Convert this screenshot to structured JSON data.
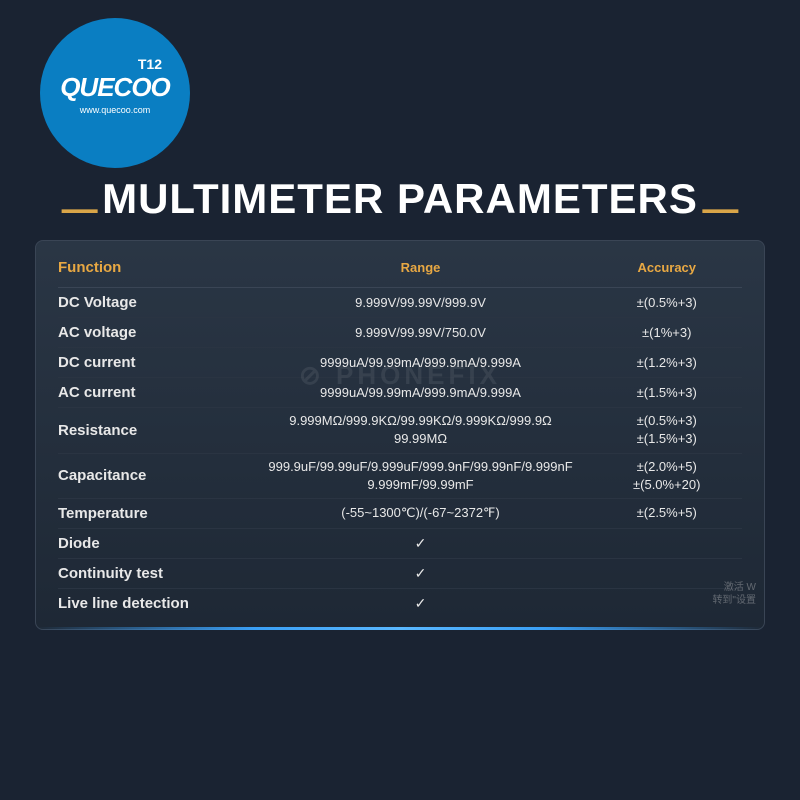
{
  "logo": {
    "brand": "QUECOO",
    "model": "T12",
    "url": "www.quecoo.com"
  },
  "title": {
    "dash": "—",
    "text": "MULTIMETER PARAMETERS"
  },
  "watermark": "⊘ PHONEFIX",
  "headers": {
    "function": "Function",
    "range": "Range",
    "accuracy": "Accuracy"
  },
  "rows": [
    {
      "func": "DC Voltage",
      "range": "9.999V/99.99V/999.9V",
      "acc": "±(0.5%+3)"
    },
    {
      "func": "AC voltage",
      "range": "9.999V/99.99V/750.0V",
      "acc": "±(1%+3)"
    },
    {
      "func": "DC current",
      "range": "9999uA/99.99mA/999.9mA/9.999A",
      "acc": "±(1.2%+3)"
    },
    {
      "func": "AC current",
      "range": "9999uA/99.99mA/999.9mA/9.999A",
      "acc": "±(1.5%+3)"
    },
    {
      "func": "Resistance",
      "range": "9.999MΩ/999.9KΩ/99.99KΩ/9.999KΩ/999.9Ω\n99.99MΩ",
      "acc": "±(0.5%+3)\n±(1.5%+3)"
    },
    {
      "func": "Capacitance",
      "range": "999.9uF/99.99uF/9.999uF/999.9nF/99.99nF/9.999nF\n9.999mF/99.99mF",
      "acc": "±(2.0%+5)\n±(5.0%+20)"
    },
    {
      "func": "Temperature",
      "range": "(-55~1300℃)/(-67~2372℉)",
      "acc": "±(2.5%+5)"
    },
    {
      "func": "Diode",
      "range": "✓",
      "acc": ""
    },
    {
      "func": "Continuity test",
      "range": "✓",
      "acc": ""
    },
    {
      "func": "Live line detection",
      "range": "✓",
      "acc": ""
    }
  ],
  "smalltext": "激活 W\n转到\"设置"
}
